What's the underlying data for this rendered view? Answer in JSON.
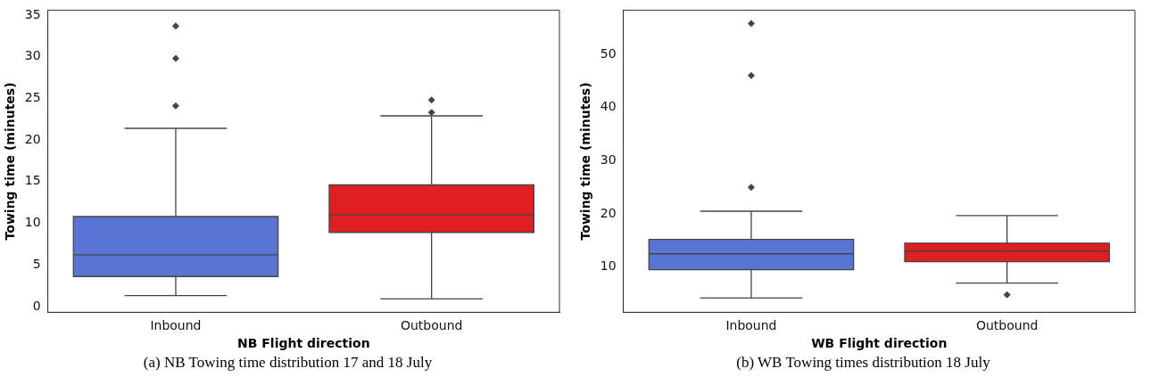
{
  "chart_data": [
    {
      "type": "box",
      "categories": [
        "Inbound",
        "Outbound"
      ],
      "xlabel": "NB Flight direction",
      "ylabel": "Towing time (minutes)",
      "ylim": [
        -0.7,
        35.6
      ],
      "yticks": [
        0,
        5,
        10,
        15,
        20,
        25,
        30,
        35
      ],
      "grid": false,
      "marker": "diamond",
      "colors": [
        "#5875d5",
        "#e01f22"
      ],
      "boxes": [
        {
          "low": 1.3,
          "q1": 3.6,
          "median": 6.2,
          "q3": 10.8,
          "high": 21.4,
          "outliers": [
            24.1,
            29.8,
            33.7
          ]
        },
        {
          "low": 0.9,
          "q1": 8.9,
          "median": 11,
          "q3": 14.6,
          "high": 22.9,
          "outliers": [
            23.3,
            24.8
          ]
        }
      ],
      "annotations": [
        "(a) NB Towing time distribution 17 and 18 July"
      ]
    },
    {
      "type": "box",
      "categories": [
        "Inbound",
        "Outbound"
      ],
      "xlabel": "WB Flight direction",
      "ylabel": "Towing time (minutes)",
      "ylim": [
        1.5,
        58.3
      ],
      "yticks": [
        10,
        20,
        30,
        40,
        50
      ],
      "grid": false,
      "marker": "diamond",
      "colors": [
        "#5875d5",
        "#e01f22"
      ],
      "boxes": [
        {
          "low": 4.2,
          "q1": 9.5,
          "median": 12.5,
          "q3": 15.2,
          "high": 20.5,
          "outliers": [
            25,
            46,
            55.8
          ]
        },
        {
          "low": 7,
          "q1": 11,
          "median": 13,
          "q3": 14.5,
          "high": 19.7,
          "outliers": [
            4.8
          ]
        }
      ],
      "annotations": [
        "(b) WB Towing times distribution 18 July"
      ]
    }
  ]
}
